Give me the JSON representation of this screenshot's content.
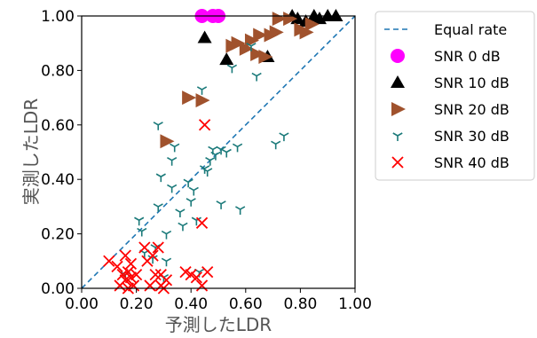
{
  "chart_data": {
    "type": "scatter",
    "title": "",
    "xlabel": "予測したLDR",
    "ylabel": "実測したLDR",
    "xlim": [
      0,
      1
    ],
    "ylim": [
      0,
      1
    ],
    "xticks": [
      "0.00",
      "0.20",
      "0.40",
      "0.60",
      "0.80",
      "1.00"
    ],
    "yticks": [
      "0.00",
      "0.20",
      "0.40",
      "0.60",
      "0.80",
      "1.00"
    ],
    "grid": false,
    "legend_position": "outside-right-top",
    "reference_line": {
      "name": "Equal rate",
      "from": [
        0,
        0
      ],
      "to": [
        1,
        1
      ],
      "color": "#1f77b4",
      "style": "dashed"
    },
    "series": [
      {
        "name": "SNR 0 dB",
        "marker": "circle",
        "color": "#ff00ff",
        "points": [
          [
            0.44,
            1.0
          ],
          [
            0.48,
            1.0
          ],
          [
            0.5,
            1.0
          ]
        ]
      },
      {
        "name": "SNR 10 dB",
        "marker": "triangle-up",
        "color": "#000000",
        "points": [
          [
            0.45,
            0.92
          ],
          [
            0.53,
            0.84
          ],
          [
            0.68,
            0.85
          ],
          [
            0.77,
            1.0
          ],
          [
            0.79,
            0.99
          ],
          [
            0.82,
            0.98
          ],
          [
            0.85,
            1.0
          ],
          [
            0.87,
            0.99
          ],
          [
            0.9,
            1.0
          ],
          [
            0.93,
            1.0
          ]
        ]
      },
      {
        "name": "SNR 20 dB",
        "marker": "triangle-right",
        "color": "#a0522d",
        "points": [
          [
            0.31,
            0.54
          ],
          [
            0.39,
            0.7
          ],
          [
            0.44,
            0.69
          ],
          [
            0.55,
            0.89
          ],
          [
            0.57,
            0.9
          ],
          [
            0.6,
            0.88
          ],
          [
            0.62,
            0.91
          ],
          [
            0.64,
            0.86
          ],
          [
            0.65,
            0.93
          ],
          [
            0.67,
            0.85
          ],
          [
            0.69,
            0.93
          ],
          [
            0.71,
            0.94
          ],
          [
            0.72,
            0.99
          ],
          [
            0.76,
            0.99
          ],
          [
            0.8,
            0.95
          ],
          [
            0.82,
            0.94
          ],
          [
            0.84,
            0.97
          ]
        ]
      },
      {
        "name": "SNR 30 dB",
        "marker": "tri-down",
        "color": "#1b7a7a",
        "points": [
          [
            0.16,
            0.05
          ],
          [
            0.21,
            0.25
          ],
          [
            0.22,
            0.21
          ],
          [
            0.23,
            0.13
          ],
          [
            0.26,
            0.11
          ],
          [
            0.27,
            0.15
          ],
          [
            0.28,
            0.6
          ],
          [
            0.28,
            0.3
          ],
          [
            0.29,
            0.41
          ],
          [
            0.3,
            0.04
          ],
          [
            0.31,
            0.1
          ],
          [
            0.31,
            0.2
          ],
          [
            0.33,
            0.47
          ],
          [
            0.33,
            0.37
          ],
          [
            0.34,
            0.52
          ],
          [
            0.36,
            0.28
          ],
          [
            0.37,
            0.23
          ],
          [
            0.39,
            0.39
          ],
          [
            0.4,
            0.32
          ],
          [
            0.41,
            0.36
          ],
          [
            0.42,
            0.25
          ],
          [
            0.43,
            0.06
          ],
          [
            0.44,
            0.73
          ],
          [
            0.45,
            0.44
          ],
          [
            0.46,
            0.43
          ],
          [
            0.47,
            0.47
          ],
          [
            0.48,
            0.51
          ],
          [
            0.49,
            0.49
          ],
          [
            0.51,
            0.31
          ],
          [
            0.51,
            0.51
          ],
          [
            0.53,
            0.5
          ],
          [
            0.55,
            0.81
          ],
          [
            0.57,
            0.52
          ],
          [
            0.58,
            0.29
          ],
          [
            0.62,
            0.89
          ],
          [
            0.64,
            0.78
          ],
          [
            0.71,
            0.53
          ],
          [
            0.74,
            0.56
          ]
        ]
      },
      {
        "name": "SNR 40 dB",
        "marker": "x",
        "color": "#ff0000",
        "points": [
          [
            0.1,
            0.1
          ],
          [
            0.13,
            0.08
          ],
          [
            0.14,
            0.01
          ],
          [
            0.15,
            0.05
          ],
          [
            0.16,
            0.03
          ],
          [
            0.16,
            0.12
          ],
          [
            0.17,
            0.0
          ],
          [
            0.17,
            0.06
          ],
          [
            0.18,
            0.04
          ],
          [
            0.18,
            0.09
          ],
          [
            0.19,
            0.01
          ],
          [
            0.2,
            0.05
          ],
          [
            0.23,
            0.15
          ],
          [
            0.24,
            0.1
          ],
          [
            0.25,
            0.01
          ],
          [
            0.26,
            0.12
          ],
          [
            0.27,
            0.05
          ],
          [
            0.28,
            0.15
          ],
          [
            0.29,
            0.01
          ],
          [
            0.29,
            0.05
          ],
          [
            0.3,
            0.0
          ],
          [
            0.31,
            0.03
          ],
          [
            0.38,
            0.06
          ],
          [
            0.4,
            0.05
          ],
          [
            0.42,
            0.04
          ],
          [
            0.44,
            0.24
          ],
          [
            0.44,
            0.01
          ],
          [
            0.45,
            0.6
          ],
          [
            0.46,
            0.06
          ]
        ]
      }
    ]
  }
}
